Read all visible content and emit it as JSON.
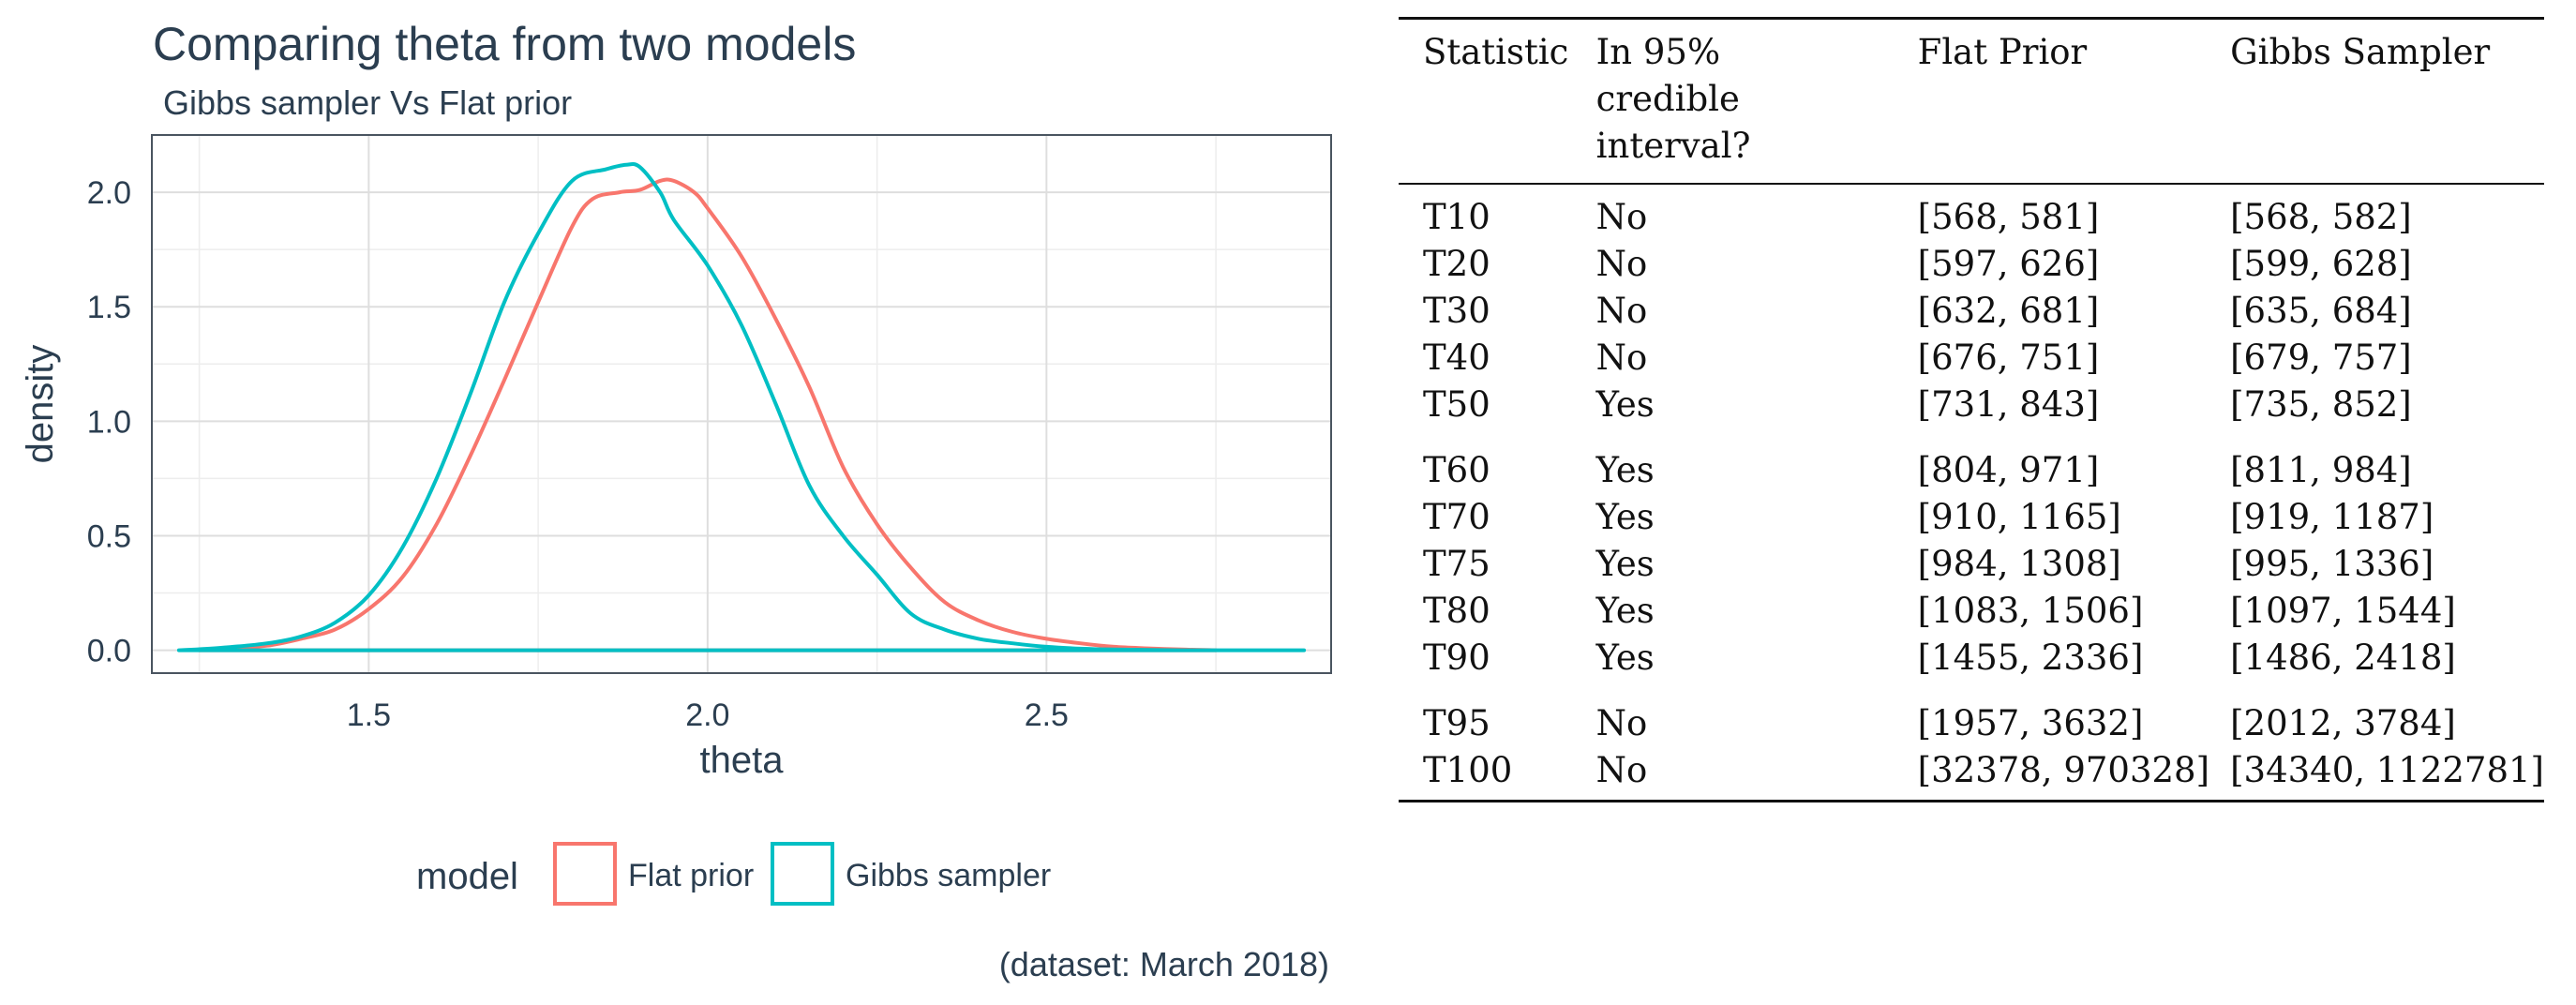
{
  "chart_data": {
    "type": "line",
    "title": "Comparing theta from two models",
    "subtitle": "Gibbs sampler Vs Flat prior",
    "xlabel": "theta",
    "ylabel": "density",
    "caption": "(dataset: March 2018)",
    "xlim": [
      1.18,
      2.92
    ],
    "ylim": [
      -0.1,
      2.25
    ],
    "x_ticks": [
      {
        "value": 1.5,
        "label": "1.5"
      },
      {
        "value": 2.0,
        "label": "2.0"
      },
      {
        "value": 2.5,
        "label": "2.5"
      }
    ],
    "y_ticks": [
      {
        "value": 0.0,
        "label": "0.0"
      },
      {
        "value": 0.5,
        "label": "0.5"
      },
      {
        "value": 1.0,
        "label": "1.0"
      },
      {
        "value": 1.5,
        "label": "1.5"
      },
      {
        "value": 2.0,
        "label": "2.0"
      }
    ],
    "grid": true,
    "legend": {
      "title": "model",
      "position": "bottom"
    },
    "series": [
      {
        "name": "Flat prior",
        "color": "#F8766D",
        "x": [
          1.25,
          1.3,
          1.35,
          1.4,
          1.45,
          1.5,
          1.55,
          1.6,
          1.65,
          1.7,
          1.75,
          1.8,
          1.83,
          1.87,
          1.9,
          1.93,
          1.95,
          1.98,
          2.0,
          2.05,
          2.1,
          2.15,
          2.2,
          2.25,
          2.3,
          2.35,
          2.4,
          2.45,
          2.5,
          2.55,
          2.6,
          2.65,
          2.7,
          2.75
        ],
        "y": [
          0.0,
          0.01,
          0.02,
          0.05,
          0.09,
          0.18,
          0.32,
          0.55,
          0.85,
          1.18,
          1.52,
          1.85,
          1.97,
          2.0,
          2.01,
          2.05,
          2.05,
          2.0,
          1.93,
          1.72,
          1.45,
          1.15,
          0.8,
          0.55,
          0.36,
          0.21,
          0.13,
          0.08,
          0.05,
          0.03,
          0.015,
          0.008,
          0.003,
          0.0
        ]
      },
      {
        "name": "Gibbs sampler",
        "color": "#00BFC4",
        "x": [
          1.22,
          1.28,
          1.35,
          1.4,
          1.45,
          1.5,
          1.55,
          1.6,
          1.65,
          1.7,
          1.75,
          1.8,
          1.85,
          1.88,
          1.9,
          1.93,
          1.95,
          2.0,
          2.05,
          2.1,
          2.15,
          2.2,
          2.25,
          2.3,
          2.35,
          2.4,
          2.45,
          2.5,
          2.55,
          2.6,
          2.7,
          2.8,
          2.88
        ],
        "y": [
          0.0,
          0.01,
          0.03,
          0.06,
          0.12,
          0.24,
          0.45,
          0.75,
          1.12,
          1.52,
          1.82,
          2.05,
          2.1,
          2.12,
          2.11,
          2.0,
          1.88,
          1.68,
          1.42,
          1.08,
          0.72,
          0.5,
          0.33,
          0.16,
          0.09,
          0.05,
          0.03,
          0.015,
          0.007,
          0.003,
          0.0,
          0.0,
          0.0
        ]
      }
    ]
  },
  "table": {
    "headers": [
      "Statistic",
      "In 95% credible interval?",
      "Flat Prior",
      "Gibbs Sampler"
    ],
    "groups": [
      [
        [
          "T10",
          "No",
          "[568, 581]",
          "[568, 582]"
        ],
        [
          "T20",
          "No",
          "[597, 626]",
          "[599, 628]"
        ],
        [
          "T30",
          "No",
          "[632, 681]",
          "[635, 684]"
        ],
        [
          "T40",
          "No",
          "[676, 751]",
          "[679, 757]"
        ],
        [
          "T50",
          "Yes",
          "[731, 843]",
          "[735, 852]"
        ]
      ],
      [
        [
          "T60",
          "Yes",
          "[804, 971]",
          "[811, 984]"
        ],
        [
          "T70",
          "Yes",
          "[910, 1165]",
          "[919, 1187]"
        ],
        [
          "T75",
          "Yes",
          "[984, 1308]",
          "[995, 1336]"
        ],
        [
          "T80",
          "Yes",
          "[1083, 1506]",
          "[1097, 1544]"
        ],
        [
          "T90",
          "Yes",
          "[1455, 2336]",
          "[1486, 2418]"
        ]
      ],
      [
        [
          "T95",
          "No",
          "[1957, 3632]",
          "[2012, 3784]"
        ],
        [
          "T100",
          "No",
          "[32378, 970328]",
          "[34340, 1122781]"
        ]
      ]
    ]
  }
}
